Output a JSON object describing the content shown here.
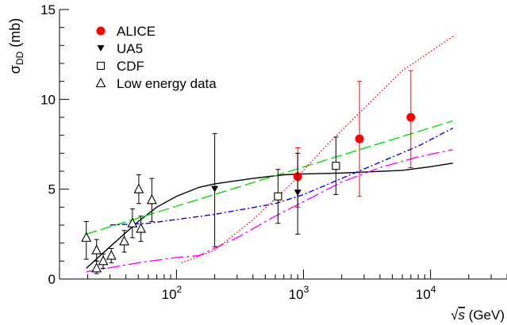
{
  "chart_data": {
    "type": "scatter",
    "xscale": "log",
    "xlim": [
      12,
      40000
    ],
    "ylim": [
      0,
      15
    ],
    "y_ticks": [
      0,
      5,
      10,
      15
    ],
    "x_ticks": [
      {
        "value": 100,
        "base": "10",
        "exp": "2"
      },
      {
        "value": 1000,
        "base": "10",
        "exp": "3"
      },
      {
        "value": 10000,
        "base": "10",
        "exp": "4"
      }
    ],
    "ylabel": {
      "main": "σ",
      "sub": "DD",
      "unit": " (mb)"
    },
    "xlabel": {
      "root": "√",
      "var": "s",
      "unit": " (GeV)"
    },
    "grid": false,
    "legend_position": "top-left",
    "series": [
      {
        "name": "ALICE",
        "marker": "filled-circle",
        "color": "#ff0000",
        "points": [
          {
            "x": 900,
            "y": 5.7,
            "err_lo": 1.7,
            "err_hi": 1.6
          },
          {
            "x": 2760,
            "y": 7.8,
            "err_lo": 3.2,
            "err_hi": 3.2
          },
          {
            "x": 7000,
            "y": 9.0,
            "err_lo": 2.8,
            "err_hi": 2.6
          }
        ]
      },
      {
        "name": "UA5",
        "marker": "filled-triangle-down",
        "color": "#000000",
        "points": [
          {
            "x": 200,
            "y": 5.0,
            "err_lo": 3.2,
            "err_hi": 3.1
          },
          {
            "x": 900,
            "y": 4.8,
            "err_lo": 2.3,
            "err_hi": 2.2
          }
        ]
      },
      {
        "name": "CDF",
        "marker": "open-square",
        "color": "#000000",
        "points": [
          {
            "x": 630,
            "y": 4.6,
            "err_lo": 1.5,
            "err_hi": 1.5
          },
          {
            "x": 1800,
            "y": 6.3,
            "err_lo": 1.6,
            "err_hi": 1.6
          }
        ]
      },
      {
        "name": "Low energy data",
        "marker": "open-triangle-up",
        "color": "#000000",
        "points": [
          {
            "x": 19.5,
            "y": 2.3,
            "err_lo": 1.2,
            "err_hi": 0.9
          },
          {
            "x": 23.5,
            "y": 1.6,
            "err_lo": 0.6,
            "err_hi": 0.6
          },
          {
            "x": 23.5,
            "y": 0.6,
            "err_lo": 0.3,
            "err_hi": 0.4
          },
          {
            "x": 26.5,
            "y": 1.0,
            "err_lo": 0.4,
            "err_hi": 0.4
          },
          {
            "x": 30.7,
            "y": 1.3,
            "err_lo": 0.4,
            "err_hi": 0.4
          },
          {
            "x": 38.8,
            "y": 2.1,
            "err_lo": 0.6,
            "err_hi": 0.6
          },
          {
            "x": 45,
            "y": 3.1,
            "err_lo": 0.8,
            "err_hi": 0.8
          },
          {
            "x": 50.5,
            "y": 5.0,
            "err_lo": 0.8,
            "err_hi": 0.8
          },
          {
            "x": 52.5,
            "y": 2.8,
            "err_lo": 0.7,
            "err_hi": 0.7
          },
          {
            "x": 64,
            "y": 4.4,
            "err_lo": 1.2,
            "err_hi": 1.2
          }
        ]
      }
    ],
    "curves": [
      {
        "color": "#000000",
        "dash": "",
        "points": [
          [
            19.5,
            0.6
          ],
          [
            30,
            1.8
          ],
          [
            50,
            3.2
          ],
          [
            70,
            4.0
          ],
          [
            100,
            4.6
          ],
          [
            150,
            5.1
          ],
          [
            200,
            5.3
          ],
          [
            400,
            5.6
          ],
          [
            700,
            5.8
          ],
          [
            1000,
            5.85
          ],
          [
            2000,
            5.9
          ],
          [
            3000,
            5.95
          ],
          [
            6000,
            6.05
          ],
          [
            10000,
            6.25
          ],
          [
            15000,
            6.45
          ]
        ]
      },
      {
        "color": "#00dd00",
        "dash": "14 5",
        "points": [
          [
            19.5,
            2.5
          ],
          [
            15000,
            8.8
          ]
        ]
      },
      {
        "color": "#0000ff",
        "dash": "7 3 2 3",
        "points": [
          [
            30,
            3.0
          ],
          [
            60,
            3.1
          ],
          [
            200,
            3.6
          ],
          [
            600,
            4.2
          ],
          [
            1000,
            4.7
          ],
          [
            2000,
            5.6
          ],
          [
            4000,
            6.5
          ],
          [
            8000,
            7.4
          ],
          [
            15000,
            8.4
          ]
        ]
      },
      {
        "color": "#ff00ff",
        "dash": "16 4 3 4",
        "points": [
          [
            19.5,
            0.4
          ],
          [
            50,
            0.9
          ],
          [
            100,
            1.2
          ],
          [
            150,
            1.3
          ],
          [
            300,
            2.3
          ],
          [
            600,
            3.5
          ],
          [
            1000,
            4.3
          ],
          [
            2000,
            5.4
          ],
          [
            4000,
            6.2
          ],
          [
            8000,
            6.8
          ],
          [
            15000,
            7.2
          ]
        ]
      },
      {
        "color": "#ff0000",
        "dash": "1.5 2.5",
        "points": [
          [
            110,
            0.9
          ],
          [
            200,
            1.6
          ],
          [
            400,
            3.3
          ],
          [
            800,
            5.3
          ],
          [
            1500,
            7.4
          ],
          [
            3000,
            9.5
          ],
          [
            6000,
            11.6
          ],
          [
            15000,
            13.5
          ]
        ]
      }
    ]
  }
}
